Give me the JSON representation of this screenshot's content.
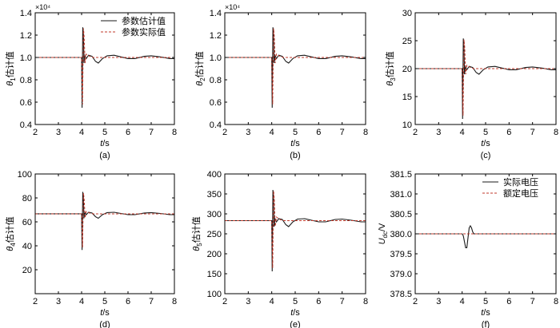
{
  "colors": {
    "estimated": "#1a1a1a",
    "actual": "#c0392b",
    "axis": "#000000"
  },
  "chart_data": [
    {
      "type": "line",
      "panel": "(a)",
      "ylabel_symbol": "θ",
      "ylabel_sub": "1",
      "ylabel_suffix": "估计值",
      "xlabel_var": "t",
      "xlabel_unit": "/s",
      "xlim": [
        2,
        8
      ],
      "ylim": [
        0.4,
        1.4
      ],
      "xticks": [
        "2",
        "3",
        "4",
        "5",
        "6",
        "7",
        "8"
      ],
      "yticks": [
        "0.4",
        "0.6",
        "0.8",
        "1.0",
        "1.2",
        "1.4"
      ],
      "ytick_values": [
        0.4,
        0.6,
        0.8,
        1.0,
        1.2,
        1.4
      ],
      "multiplier": "×10⁴",
      "legend": {
        "position": "top-right",
        "labels": [
          "参数估计值",
          "参数实际值"
        ]
      },
      "base": 1.0,
      "series": [
        {
          "name": "参数估计值",
          "style": "solid",
          "x": [
            2,
            3,
            4,
            4.02,
            4.05,
            4.08,
            4.1,
            4.14,
            4.2,
            4.3,
            4.45,
            4.6,
            4.72,
            4.9,
            5.1,
            5.4,
            5.7,
            6.0,
            6.3,
            6.7,
            7.0,
            7.4,
            7.8,
            8
          ],
          "y": [
            1.0,
            1.0,
            1.0,
            0.55,
            1.27,
            1.2,
            0.95,
            1.02,
            0.99,
            1.02,
            1.01,
            0.965,
            0.95,
            0.99,
            1.015,
            1.02,
            1.005,
            0.99,
            0.99,
            1.01,
            1.015,
            1.005,
            0.99,
            0.99
          ]
        },
        {
          "name": "参数实际值",
          "style": "dashed",
          "x": [
            2,
            4.0,
            4.04,
            4.08,
            4.11,
            4.15,
            4.2,
            4.35,
            4.5,
            4.7,
            5.0,
            5.5,
            6.0,
            6.5,
            7.0,
            7.5,
            8
          ],
          "y": [
            1.0,
            1.0,
            0.58,
            1.26,
            1.19,
            0.95,
            1.03,
            1.01,
            1.0,
            1.0,
            1.0,
            1.0,
            1.0,
            1.0,
            1.0,
            1.0,
            1.0
          ]
        }
      ]
    },
    {
      "type": "line",
      "panel": "(b)",
      "ylabel_symbol": "θ",
      "ylabel_sub": "2",
      "ylabel_suffix": "估计值",
      "xlabel_var": "t",
      "xlabel_unit": "/s",
      "xlim": [
        2,
        8
      ],
      "ylim": [
        0.4,
        1.4
      ],
      "xticks": [
        "2",
        "3",
        "4",
        "5",
        "6",
        "7",
        "8"
      ],
      "yticks": [
        "0.4",
        "0.6",
        "0.8",
        "1.0",
        "1.2",
        "1.4"
      ],
      "ytick_values": [
        0.4,
        0.6,
        0.8,
        1.0,
        1.2,
        1.4
      ],
      "multiplier": "×10⁴",
      "base": 1.0,
      "series": [
        {
          "style": "solid",
          "x": [
            2,
            3,
            4,
            4.02,
            4.05,
            4.08,
            4.1,
            4.14,
            4.2,
            4.3,
            4.45,
            4.6,
            4.72,
            4.9,
            5.1,
            5.4,
            5.7,
            6.0,
            6.3,
            6.7,
            7.0,
            7.4,
            7.8,
            8
          ],
          "y": [
            1.0,
            1.0,
            1.0,
            0.55,
            1.27,
            1.2,
            0.95,
            1.02,
            0.99,
            1.02,
            1.01,
            0.965,
            0.95,
            0.99,
            1.015,
            1.02,
            1.005,
            0.99,
            0.99,
            1.01,
            1.015,
            1.005,
            0.99,
            0.99
          ]
        },
        {
          "style": "dashed",
          "x": [
            2,
            4.0,
            4.04,
            4.08,
            4.11,
            4.15,
            4.2,
            4.35,
            4.5,
            4.7,
            5.0,
            5.5,
            6.0,
            6.5,
            7.0,
            7.5,
            8
          ],
          "y": [
            1.0,
            1.0,
            0.58,
            1.26,
            1.19,
            0.95,
            1.03,
            1.01,
            1.0,
            1.0,
            1.0,
            1.0,
            1.0,
            1.0,
            1.0,
            1.0,
            1.0
          ]
        }
      ]
    },
    {
      "type": "line",
      "panel": "(c)",
      "ylabel_symbol": "θ",
      "ylabel_sub": "3",
      "ylabel_suffix": "估计值",
      "xlabel_var": "t",
      "xlabel_unit": "/s",
      "xlim": [
        2,
        8
      ],
      "ylim": [
        10,
        30
      ],
      "xticks": [
        "2",
        "3",
        "4",
        "5",
        "6",
        "7",
        "8"
      ],
      "yticks": [
        "10",
        "15",
        "20",
        "25",
        "30"
      ],
      "ytick_values": [
        10,
        15,
        20,
        25,
        30
      ],
      "series": [
        {
          "style": "solid",
          "x": [
            2,
            3,
            4,
            4.02,
            4.05,
            4.08,
            4.1,
            4.14,
            4.2,
            4.3,
            4.45,
            4.6,
            4.72,
            4.9,
            5.1,
            5.4,
            5.7,
            6.0,
            6.3,
            6.7,
            7.0,
            7.4,
            7.8,
            8
          ],
          "y": [
            20,
            20,
            20,
            11,
            25.4,
            24,
            19,
            20.4,
            19.8,
            20.4,
            20.2,
            19.3,
            19,
            19.8,
            20.3,
            20.4,
            20.1,
            19.8,
            19.8,
            20.2,
            20.3,
            20.1,
            19.8,
            19.8
          ]
        },
        {
          "style": "dashed",
          "x": [
            2,
            4.0,
            4.04,
            4.08,
            4.11,
            4.15,
            4.2,
            4.35,
            4.5,
            4.7,
            5.0,
            5.5,
            6.0,
            6.5,
            7.0,
            7.5,
            8
          ],
          "y": [
            20,
            20,
            11.6,
            25.2,
            23.8,
            19,
            20.6,
            20.2,
            20,
            20,
            20,
            20,
            20,
            20,
            20,
            20,
            20
          ]
        }
      ]
    },
    {
      "type": "line",
      "panel": "(d)",
      "ylabel_symbol": "θ",
      "ylabel_sub": "4",
      "ylabel_suffix": "估计值",
      "xlabel_var": "t",
      "xlabel_unit": "/s",
      "xlim": [
        2,
        8
      ],
      "ylim": [
        0,
        100
      ],
      "xticks": [
        "2",
        "3",
        "4",
        "5",
        "6",
        "7",
        "8"
      ],
      "yticks": [
        "",
        "20",
        "40",
        "60",
        "80",
        "100"
      ],
      "ytick_values": [
        0,
        20,
        40,
        60,
        80,
        100
      ],
      "series": [
        {
          "style": "solid",
          "x": [
            2,
            3,
            4,
            4.02,
            4.05,
            4.08,
            4.1,
            4.14,
            4.2,
            4.3,
            4.45,
            4.6,
            4.72,
            4.9,
            5.1,
            5.4,
            5.7,
            6.0,
            6.3,
            6.7,
            7.0,
            7.4,
            7.8,
            8
          ],
          "y": [
            66.7,
            66.7,
            66.7,
            36.5,
            85,
            80,
            63,
            68,
            66,
            68,
            67.4,
            64.3,
            63,
            66,
            67.7,
            68,
            67,
            66,
            66,
            67.4,
            67.7,
            67,
            66,
            66
          ]
        },
        {
          "style": "dashed",
          "x": [
            2,
            4.0,
            4.04,
            4.08,
            4.11,
            4.15,
            4.2,
            4.35,
            4.5,
            4.7,
            5.0,
            5.5,
            6.0,
            6.5,
            7.0,
            7.5,
            8
          ],
          "y": [
            66.7,
            66.7,
            38.7,
            84,
            79.3,
            63.3,
            68.7,
            67.3,
            66.7,
            66.7,
            66.7,
            66.7,
            66.7,
            66.7,
            66.7,
            66.7,
            66.7
          ]
        }
      ]
    },
    {
      "type": "line",
      "panel": "(e)",
      "ylabel_symbol": "θ",
      "ylabel_sub": "5",
      "ylabel_suffix": "估计值",
      "xlabel_var": "t",
      "xlabel_unit": "/s",
      "xlim": [
        2,
        8
      ],
      "ylim": [
        100,
        400
      ],
      "xticks": [
        "2",
        "3",
        "4",
        "5",
        "6",
        "7",
        "8"
      ],
      "yticks": [
        "100",
        "150",
        "200",
        "250",
        "300",
        "350",
        "400"
      ],
      "ytick_values": [
        100,
        150,
        200,
        250,
        300,
        350,
        400
      ],
      "series": [
        {
          "style": "solid",
          "x": [
            2,
            3,
            4,
            4.02,
            4.05,
            4.08,
            4.1,
            4.14,
            4.2,
            4.3,
            4.45,
            4.6,
            4.72,
            4.9,
            5.1,
            5.4,
            5.7,
            6.0,
            6.3,
            6.7,
            7.0,
            7.4,
            7.8,
            8
          ],
          "y": [
            283,
            283,
            283,
            156,
            360,
            340,
            268,
            288,
            280,
            288,
            286,
            273,
            268,
            280,
            287,
            288,
            284,
            280,
            280,
            286,
            287,
            284,
            280,
            280
          ]
        },
        {
          "style": "dashed",
          "x": [
            2,
            4.0,
            4.04,
            4.08,
            4.11,
            4.15,
            4.2,
            4.35,
            4.5,
            4.7,
            5.0,
            5.5,
            6.0,
            6.5,
            7.0,
            7.5,
            8
          ],
          "y": [
            283,
            283,
            164,
            357,
            337,
            269,
            292,
            286,
            283,
            283,
            283,
            283,
            283,
            283,
            283,
            283,
            283
          ]
        }
      ]
    },
    {
      "type": "line",
      "panel": "(f)",
      "ylabel_symbol": "U",
      "ylabel_sub": "dc",
      "ylabel_suffix": "/V",
      "xlabel_var": "t",
      "xlabel_unit": "/s",
      "xlim": [
        2,
        8
      ],
      "ylim": [
        378.5,
        381.5
      ],
      "xticks": [
        "2",
        "3",
        "4",
        "5",
        "6",
        "7",
        "8"
      ],
      "yticks": [
        "378.5",
        "379.0",
        "379.5",
        "380.0",
        "380.5",
        "381.0",
        "381.5"
      ],
      "ytick_values": [
        378.5,
        379.0,
        379.5,
        380.0,
        380.5,
        381.0,
        381.5
      ],
      "legend": {
        "position": "top-right",
        "labels": [
          "实际电压",
          "额定电压"
        ]
      },
      "series": [
        {
          "name": "实际电压",
          "style": "solid",
          "x": [
            2,
            3,
            4.0,
            4.05,
            4.1,
            4.15,
            4.2,
            4.25,
            4.3,
            4.35,
            4.4,
            4.45,
            4.5,
            4.6,
            5,
            6,
            7,
            8
          ],
          "y": [
            380,
            380,
            380,
            379.95,
            379.8,
            379.65,
            379.65,
            379.9,
            380.15,
            380.2,
            380.15,
            380.05,
            380.0,
            380.0,
            380.0,
            380.0,
            380.0,
            380.0
          ]
        },
        {
          "name": "额定电压",
          "style": "dashed",
          "x": [
            2,
            8
          ],
          "y": [
            380,
            380
          ]
        }
      ]
    }
  ]
}
